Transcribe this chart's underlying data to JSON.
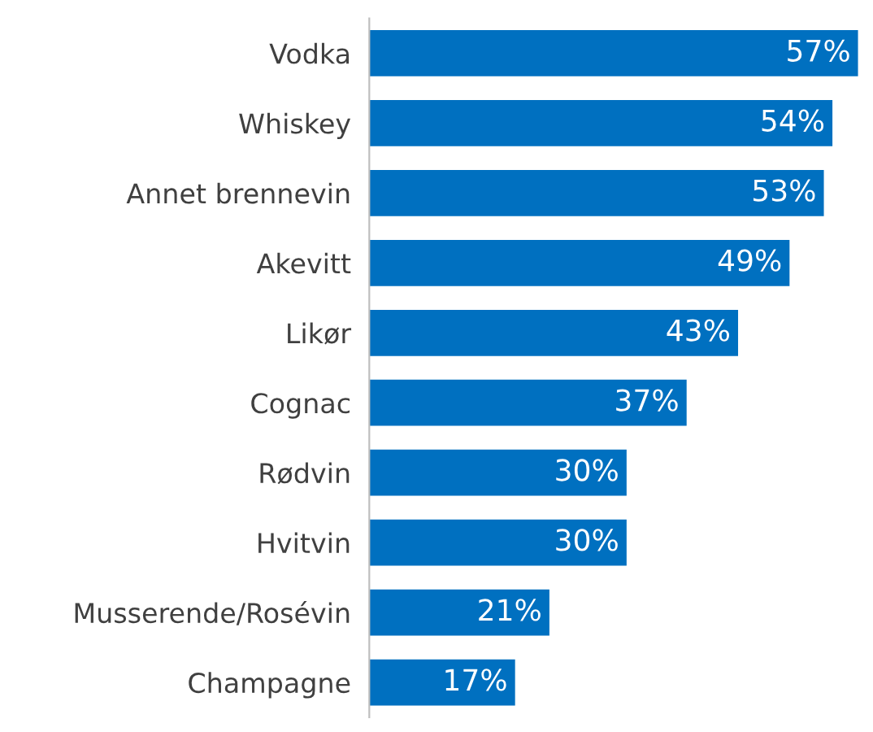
{
  "chart_data": {
    "type": "bar",
    "orientation": "horizontal",
    "categories": [
      "Vodka",
      "Whiskey",
      "Annet brennevin",
      "Akevitt",
      "Likør",
      "Cognac",
      "Rødvin",
      "Hvitvin",
      "Musserende/Rosévin",
      "Champagne"
    ],
    "values": [
      57,
      54,
      53,
      49,
      43,
      37,
      30,
      30,
      21,
      17
    ],
    "value_labels": [
      "57%",
      "54%",
      "53%",
      "49%",
      "43%",
      "37%",
      "30%",
      "30%",
      "21%",
      "17%"
    ],
    "color": "#0070c0",
    "grid": false,
    "legend": false
  }
}
